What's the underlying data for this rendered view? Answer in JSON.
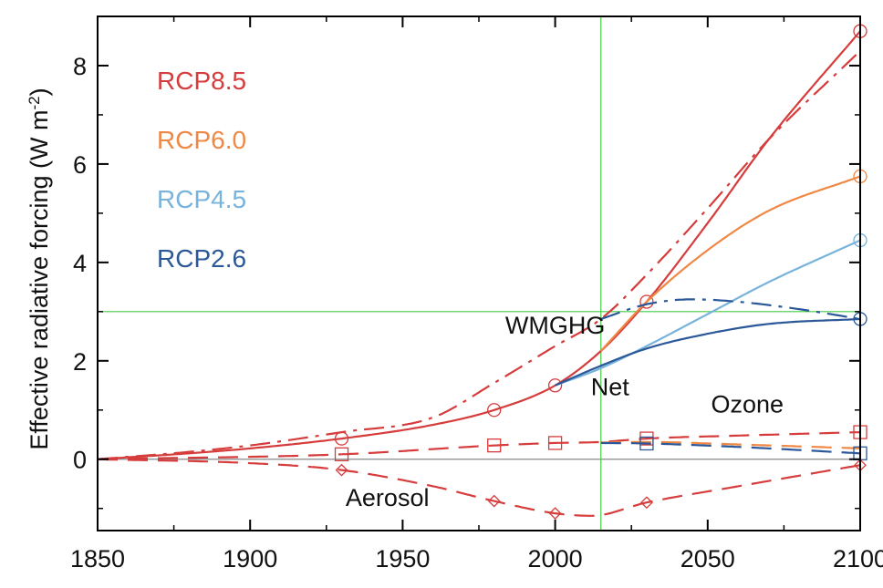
{
  "chart_data": {
    "type": "line",
    "ylabel_main": "Effective radiative forcing (W m",
    "ylabel_sup": "-2",
    "ylabel_close": ")",
    "xlim": [
      1850,
      2100
    ],
    "ylim": [
      -1.45,
      9.0
    ],
    "xticks": [
      1850,
      1900,
      1950,
      2000,
      2050,
      2100
    ],
    "yticks": [
      0,
      2,
      4,
      6,
      8
    ],
    "ref_lines": {
      "x": 2015,
      "y": 3,
      "color": "#44cc44"
    },
    "legend": [
      {
        "label": "RCP8.5",
        "color": "#d63c3c"
      },
      {
        "label": "RCP6.0",
        "color": "#ee8844"
      },
      {
        "label": "RCP4.5",
        "color": "#77b3dc"
      },
      {
        "label": "RCP2.6",
        "color": "#2b5898"
      }
    ],
    "annotations": [
      {
        "text": "WMGHG",
        "x": 2000,
        "y": 2.55
      },
      {
        "text": "Net",
        "x": 2018,
        "y": 1.3
      },
      {
        "text": "Ozone",
        "x": 2063,
        "y": 0.95
      },
      {
        "text": "Aerosol",
        "x": 1945,
        "y": -0.95
      }
    ],
    "series": [
      {
        "group": "Net",
        "scenario": "RCP8.5",
        "color": "#d63c3c",
        "style": "solid",
        "x": [
          1850,
          1880,
          1900,
          1930,
          1960,
          1980,
          2000,
          2015,
          2030,
          2050,
          2070,
          2100
        ],
        "y": [
          0.0,
          0.12,
          0.22,
          0.42,
          0.7,
          1.0,
          1.5,
          2.2,
          3.2,
          4.8,
          6.5,
          8.7
        ],
        "marker_x": [
          1930,
          1980,
          2000,
          2030,
          2100
        ]
      },
      {
        "group": "Net",
        "scenario": "RCP6.0",
        "color": "#ee8844",
        "style": "solid",
        "x": [
          2015,
          2030,
          2050,
          2070,
          2100
        ],
        "y": [
          2.2,
          3.2,
          4.25,
          5.05,
          5.75
        ],
        "marker_x": [
          2100
        ]
      },
      {
        "group": "Net",
        "scenario": "RCP4.5",
        "color": "#77b3dc",
        "style": "solid",
        "x": [
          2000,
          2015,
          2030,
          2050,
          2070,
          2100
        ],
        "y": [
          1.5,
          1.85,
          2.3,
          2.95,
          3.6,
          4.45
        ],
        "marker_x": [
          2100
        ]
      },
      {
        "group": "Net",
        "scenario": "RCP2.6",
        "color": "#2b5898",
        "style": "solid",
        "x": [
          2000,
          2015,
          2030,
          2050,
          2070,
          2100
        ],
        "y": [
          1.5,
          1.9,
          2.25,
          2.55,
          2.75,
          2.85
        ],
        "marker_x": [
          2100
        ]
      },
      {
        "group": "WMGHG",
        "scenario": "RCP8.5",
        "color": "#d63c3c",
        "style": "dashdot",
        "x": [
          1850,
          1880,
          1900,
          1930,
          1960,
          1980,
          2000,
          2015,
          2030,
          2050,
          2070,
          2100
        ],
        "y": [
          0.0,
          0.15,
          0.28,
          0.55,
          0.85,
          1.55,
          2.3,
          2.85,
          3.75,
          5.1,
          6.5,
          8.3
        ],
        "marker_x": []
      },
      {
        "group": "WMGHG",
        "scenario": "RCP2.6",
        "color": "#2b5898",
        "style": "dashdot",
        "x": [
          2015,
          2030,
          2045,
          2060,
          2080,
          2100
        ],
        "y": [
          2.85,
          3.15,
          3.25,
          3.2,
          3.05,
          2.85
        ],
        "marker_x": []
      },
      {
        "group": "Ozone",
        "scenario": "RCP8.5",
        "color": "#d63c3c",
        "style": "dashed",
        "x": [
          1850,
          1930,
          1980,
          2000,
          2015,
          2030,
          2060,
          2100
        ],
        "y": [
          0.0,
          0.1,
          0.28,
          0.33,
          0.35,
          0.42,
          0.48,
          0.55
        ],
        "marker_x": [
          1930,
          1980,
          2000,
          2030,
          2100
        ]
      },
      {
        "group": "Ozone",
        "scenario": "RCP6.0",
        "color": "#ee8844",
        "style": "dashed",
        "x": [
          2015,
          2030,
          2060,
          2100
        ],
        "y": [
          0.34,
          0.35,
          0.3,
          0.22
        ],
        "marker_x": []
      },
      {
        "group": "Ozone",
        "scenario": "RCP2.6",
        "color": "#2b5898",
        "style": "dashed",
        "x": [
          2015,
          2030,
          2060,
          2100
        ],
        "y": [
          0.33,
          0.32,
          0.25,
          0.12
        ],
        "marker_x": [
          2030,
          2100
        ]
      },
      {
        "group": "Aerosol",
        "scenario": "RCP8.5",
        "color": "#d63c3c",
        "style": "dashed",
        "x": [
          1850,
          1900,
          1930,
          1960,
          1980,
          2000,
          2012,
          2030,
          2060,
          2100
        ],
        "y": [
          0.0,
          -0.08,
          -0.22,
          -0.55,
          -0.85,
          -1.1,
          -1.15,
          -0.88,
          -0.55,
          -0.12
        ],
        "marker_x": [
          1930,
          1980,
          2000,
          2030,
          2100
        ]
      }
    ]
  }
}
